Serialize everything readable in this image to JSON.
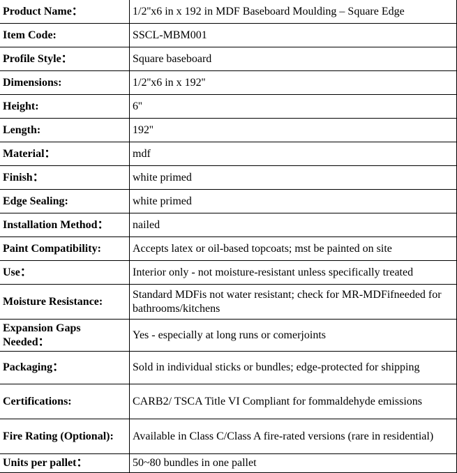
{
  "rows": [
    {
      "label": "Product Name：",
      "value": "1/2''x6 in x 192 in MDF Baseboard Moulding – Square Edge"
    },
    {
      "label": "Item Code:",
      "value": "SSCL-MBM001"
    },
    {
      "label": "Profile Style：",
      "value": "Square baseboard"
    },
    {
      "label": "Dimensions:",
      "value": "1/2''x6 in x 192''"
    },
    {
      "label": "Height:",
      "value": "6''"
    },
    {
      "label": "Length:",
      "value": "192''"
    },
    {
      "label": "Material：",
      "value": "mdf"
    },
    {
      "label": "Finish：",
      "value": "white primed"
    },
    {
      "label": "Edge Sealing:",
      "value": "white primed"
    },
    {
      "label": "Installation Method：",
      "value": "nailed"
    },
    {
      "label": "Paint Compatibility:",
      "value": "Accepts latex or oil-based topcoats; mst be painted on site"
    },
    {
      "label": "Use：",
      "value": "Interior only - not moisture-resistant unless specifically treated"
    },
    {
      "label": "Moisture Resistance:",
      "value": "Standard MDFis not water resistant; check for MR-MDFifneeded for bathrooms/kitchens"
    },
    {
      "label": "Expansion Gaps Needed：",
      "value": "Yes - especially at long runs or comerjoints"
    },
    {
      "label": "Packaging：",
      "value": "Sold in individual sticks or bundles; edge-protected for shipping"
    },
    {
      "label": "Certifications:",
      "value": "CARB2/ TSCA Title VI Compliant for fommaldehyde emissions"
    },
    {
      "label": "Fire Rating (Optional):",
      "value": "Available in Class C/Class A fire-rated versions (rare in residential)"
    },
    {
      "label": "Units per pallet：",
      "value": "50~80 bundles in one pallet"
    }
  ]
}
